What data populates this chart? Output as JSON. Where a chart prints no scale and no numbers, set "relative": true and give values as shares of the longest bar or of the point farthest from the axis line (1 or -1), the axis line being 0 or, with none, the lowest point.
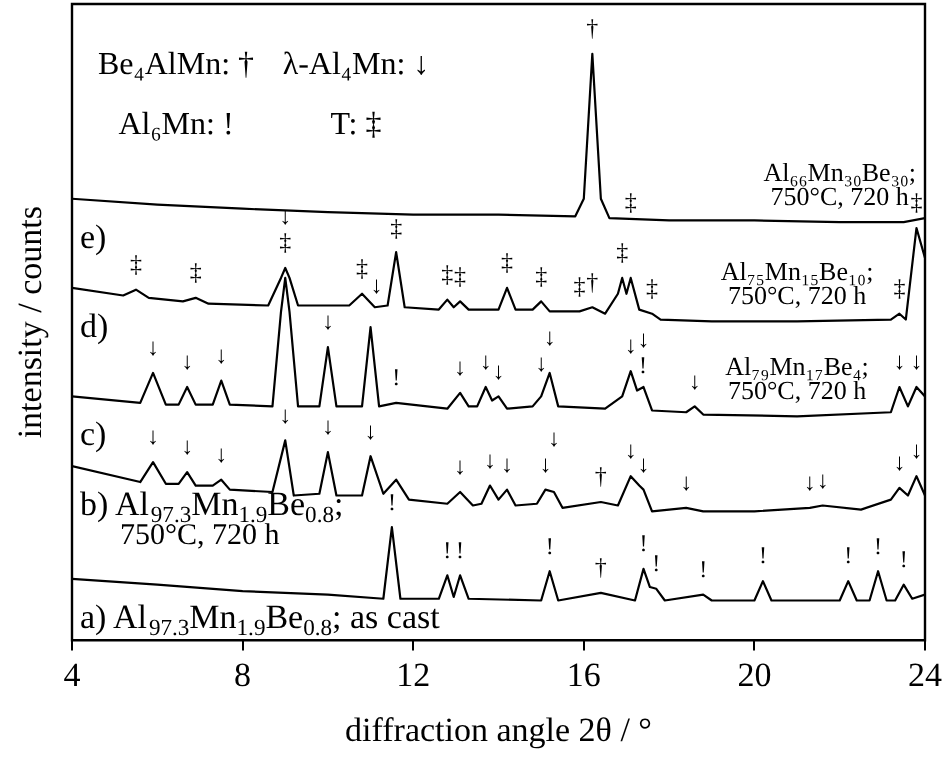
{
  "chart_data": {
    "type": "line",
    "xlabel": "diffraction angle 2θ / °",
    "ylabel": "intensity / counts",
    "xlim": [
      4,
      24
    ],
    "xticks": [
      4,
      8,
      12,
      16,
      20,
      24
    ],
    "relative": true,
    "tick_labels": "x",
    "series": [
      {
        "name": "e)",
        "color": "#000000",
        "x": [
          4,
          6,
          8,
          10,
          12,
          14,
          15.8,
          16.0,
          16.2,
          16.4,
          16.6,
          18,
          20,
          22,
          23.5,
          24
        ],
        "values": [
          0.753,
          0.743,
          0.736,
          0.73,
          0.726,
          0.726,
          0.723,
          0.753,
          1,
          0.753,
          0.72,
          0.716,
          0.716,
          0.713,
          0.713,
          0.72
        ]
      },
      {
        "name": "d)",
        "color": "#000000",
        "x": [
          4,
          5.2,
          5.5,
          5.8,
          6.6,
          6.9,
          7.2,
          8.6,
          8.9,
          9.0,
          9.1,
          9.3,
          10.5,
          10.8,
          11.1,
          11.4,
          11.6,
          11.8,
          12.6,
          12.8,
          12.95,
          13.1,
          13.3,
          14.0,
          14.2,
          14.4,
          14.8,
          15.0,
          15.2,
          15.9,
          16.2,
          16.5,
          16.8,
          16.9,
          17.0,
          17.1,
          17.3,
          17.6,
          17.8,
          19,
          21,
          23.2,
          23.4,
          23.55,
          23.8,
          24
        ],
        "values": [
          0.601,
          0.588,
          0.598,
          0.584,
          0.578,
          0.584,
          0.574,
          0.571,
          0.618,
          0.635,
          0.618,
          0.571,
          0.571,
          0.591,
          0.568,
          0.571,
          0.662,
          0.568,
          0.564,
          0.581,
          0.568,
          0.578,
          0.564,
          0.564,
          0.601,
          0.564,
          0.564,
          0.578,
          0.561,
          0.561,
          0.568,
          0.557,
          0.591,
          0.618,
          0.591,
          0.618,
          0.564,
          0.557,
          0.547,
          0.544,
          0.544,
          0.547,
          0.557,
          0.547,
          0.703,
          0.652
        ]
      },
      {
        "name": "c)",
        "color": "#000000",
        "x": [
          4,
          5.6,
          5.9,
          6.2,
          6.5,
          6.7,
          6.9,
          7.3,
          7.5,
          7.7,
          8.7,
          8.9,
          9.0,
          9.1,
          9.3,
          9.8,
          10.0,
          10.2,
          10.8,
          11.0,
          11.2,
          11.6,
          12.8,
          13.1,
          13.3,
          13.5,
          13.7,
          13.85,
          14.0,
          14.2,
          14.8,
          15.0,
          15.2,
          15.4,
          16.5,
          16.9,
          17.1,
          17.25,
          17.4,
          17.6,
          18.4,
          18.6,
          18.8,
          21,
          23.2,
          23.4,
          23.6,
          23.8,
          24
        ],
        "values": [
          0.416,
          0.405,
          0.456,
          0.402,
          0.402,
          0.432,
          0.402,
          0.402,
          0.443,
          0.402,
          0.399,
          0.56,
          0.618,
          0.56,
          0.399,
          0.399,
          0.5,
          0.399,
          0.399,
          0.534,
          0.399,
          0.405,
          0.395,
          0.422,
          0.399,
          0.399,
          0.432,
          0.409,
          0.416,
          0.395,
          0.399,
          0.416,
          0.456,
          0.399,
          0.395,
          0.416,
          0.459,
          0.426,
          0.432,
          0.392,
          0.389,
          0.399,
          0.385,
          0.382,
          0.389,
          0.432,
          0.399,
          0.432,
          0.416
        ]
      },
      {
        "name": "b) Al$_{97.3}$Mn$_{1.9}$Be$_{0.8}$;\n750°C, 720 h",
        "color": "#000000",
        "x": [
          4,
          5.6,
          5.9,
          6.2,
          6.5,
          6.7,
          6.9,
          7.3,
          7.5,
          7.7,
          8.7,
          9.0,
          9.2,
          9.8,
          10.0,
          10.2,
          10.8,
          11.0,
          11.3,
          11.6,
          11.9,
          12.8,
          13.1,
          13.4,
          13.6,
          13.8,
          14.0,
          14.2,
          14.4,
          14.9,
          15.1,
          15.3,
          15.5,
          16.4,
          16.8,
          17.1,
          17.3,
          17.4,
          17.6,
          18.4,
          18.8,
          20,
          21.3,
          21.6,
          22.5,
          23.2,
          23.4,
          23.6,
          23.8,
          24
        ],
        "values": [
          0.297,
          0.27,
          0.304,
          0.267,
          0.267,
          0.287,
          0.264,
          0.264,
          0.274,
          0.257,
          0.253,
          0.341,
          0.247,
          0.25,
          0.321,
          0.247,
          0.247,
          0.314,
          0.25,
          0.274,
          0.24,
          0.233,
          0.253,
          0.23,
          0.233,
          0.264,
          0.24,
          0.257,
          0.23,
          0.233,
          0.257,
          0.253,
          0.226,
          0.236,
          0.23,
          0.28,
          0.264,
          0.257,
          0.22,
          0.226,
          0.22,
          0.22,
          0.226,
          0.23,
          0.223,
          0.24,
          0.26,
          0.247,
          0.28,
          0.247
        ]
      },
      {
        "name": "a) Al$_{97.3}$Mn$_{1.9}$Be$_{0.8}$; as cast",
        "color": "#000000",
        "x": [
          4,
          6,
          8,
          10,
          11.3,
          11.5,
          11.7,
          12.6,
          12.8,
          12.95,
          13.1,
          13.3,
          15.0,
          15.2,
          15.4,
          16.4,
          17.2,
          17.4,
          17.55,
          17.7,
          17.9,
          18.8,
          19.0,
          20.0,
          20.2,
          20.4,
          22.0,
          22.2,
          22.4,
          22.7,
          22.9,
          23.1,
          23.3,
          23.5,
          23.7,
          24
        ],
        "values": [
          0.105,
          0.095,
          0.084,
          0.078,
          0.071,
          0.193,
          0.071,
          0.071,
          0.111,
          0.074,
          0.111,
          0.071,
          0.068,
          0.118,
          0.068,
          0.081,
          0.068,
          0.122,
          0.091,
          0.088,
          0.068,
          0.078,
          0.068,
          0.068,
          0.101,
          0.068,
          0.068,
          0.101,
          0.068,
          0.068,
          0.118,
          0.068,
          0.068,
          0.095,
          0.071,
          0.078
        ]
      }
    ],
    "annotations": [
      "Be₄AlMn: †",
      "λ-Al₄Mn: ↓",
      "Al₆Mn: !",
      "T: ‡",
      {
        "text": "Al₆₆Mn₃₀Be₃₀;\n750°C, 720 h",
        "x": 22,
        "y": 0.713
      },
      {
        "text": "Al₇₅Mn₁₅Be₁₀;\n750°C, 720 h",
        "x": 21,
        "y": 0.544
      },
      {
        "text": "Al₇₉Mn₁₇Be₄;\n750°C, 720 h",
        "x": 21,
        "y": 0.382
      },
      {
        "text": "†",
        "x": 16.2,
        "y": 1
      },
      {
        "text": "‡",
        "x": 5.5,
        "y": 0.598
      },
      {
        "text": "‡",
        "x": 6.9,
        "y": 0.584
      },
      {
        "text": "‡",
        "x": 9.0,
        "y": 0.635
      },
      {
        "text": "‡",
        "x": 10.8,
        "y": 0.591
      },
      {
        "text": "‡",
        "x": 11.6,
        "y": 0.662
      },
      {
        "text": "‡",
        "x": 12.8,
        "y": 0.581
      },
      {
        "text": "‡",
        "x": 13.1,
        "y": 0.578
      },
      {
        "text": "‡",
        "x": 14.2,
        "y": 0.601
      },
      {
        "text": "‡",
        "x": 15.0,
        "y": 0.578
      },
      {
        "text": "‡",
        "x": 15.9,
        "y": 0.561
      },
      {
        "text": "†",
        "x": 16.2,
        "y": 0.568
      },
      {
        "text": "‡",
        "x": 16.9,
        "y": 0.618
      },
      {
        "text": "‡",
        "x": 17.1,
        "y": 0.618
      },
      {
        "text": "‡",
        "x": 17.6,
        "y": 0.557
      },
      {
        "text": "‡",
        "x": 23.4,
        "y": 0.557
      },
      {
        "text": "‡",
        "x": 23.8,
        "y": 0.703
      },
      {
        "text": "↓",
        "x": 5.9,
        "y": 0.456
      },
      {
        "text": "↓",
        "x": 6.7,
        "y": 0.432
      },
      {
        "text": "↓",
        "x": 7.5,
        "y": 0.443
      },
      {
        "text": "↓",
        "x": 9.0,
        "y": 0.618
      },
      {
        "text": "↓",
        "x": 10.0,
        "y": 0.5
      },
      {
        "text": "↓",
        "x": 11.0,
        "y": 0.534
      },
      {
        "text": "!",
        "x": 11.6,
        "y": 0.405
      },
      {
        "text": "↓",
        "x": 13.1,
        "y": 0.422
      },
      {
        "text": "↓",
        "x": 13.7,
        "y": 0.432
      },
      {
        "text": "↓",
        "x": 14.0,
        "y": 0.416
      },
      {
        "text": "↓",
        "x": 15.0,
        "y": 0.416
      },
      {
        "text": "↓",
        "x": 15.2,
        "y": 0.456
      },
      {
        "text": "↓",
        "x": 17.1,
        "y": 0.459
      },
      {
        "text": "!",
        "x": 17.25,
        "y": 0.426
      },
      {
        "text": "↓",
        "x": 17.4,
        "y": 0.432
      },
      {
        "text": "↓",
        "x": 18.6,
        "y": 0.399
      },
      {
        "text": "↓",
        "x": 23.4,
        "y": 0.432
      },
      {
        "text": "↓",
        "x": 23.8,
        "y": 0.432
      },
      {
        "text": "↓",
        "x": 5.9,
        "y": 0.304
      },
      {
        "text": "↓",
        "x": 6.7,
        "y": 0.287
      },
      {
        "text": "↓",
        "x": 7.5,
        "y": 0.274
      },
      {
        "text": "↓",
        "x": 9.0,
        "y": 0.341
      },
      {
        "text": "↓",
        "x": 10.0,
        "y": 0.321
      },
      {
        "text": "↓",
        "x": 11.0,
        "y": 0.314
      },
      {
        "text": "↓",
        "x": 13.1,
        "y": 0.253
      },
      {
        "text": "↓",
        "x": 13.8,
        "y": 0.264
      },
      {
        "text": "↓",
        "x": 14.2,
        "y": 0.257
      },
      {
        "text": "↓",
        "x": 15.1,
        "y": 0.257
      },
      {
        "text": "↓",
        "x": 15.3,
        "y": 0.253
      },
      {
        "text": "†",
        "x": 16.4,
        "y": 0.236
      },
      {
        "text": "↓",
        "x": 17.1,
        "y": 0.28
      },
      {
        "text": "↓",
        "x": 17.4,
        "y": 0.257
      },
      {
        "text": "↓",
        "x": 18.4,
        "y": 0.226
      },
      {
        "text": "↓",
        "x": 21.3,
        "y": 0.226
      },
      {
        "text": "↓",
        "x": 21.6,
        "y": 0.23
      },
      {
        "text": "↓",
        "x": 23.4,
        "y": 0.26
      },
      {
        "text": "↓",
        "x": 23.8,
        "y": 0.28
      },
      {
        "text": "!",
        "x": 11.5,
        "y": 0.193
      },
      {
        "text": "!",
        "x": 12.8,
        "y": 0.111
      },
      {
        "text": "!",
        "x": 13.1,
        "y": 0.111
      },
      {
        "text": "!",
        "x": 15.2,
        "y": 0.118
      },
      {
        "text": "†",
        "x": 16.4,
        "y": 0.081
      },
      {
        "text": "!",
        "x": 17.4,
        "y": 0.122
      },
      {
        "text": "!",
        "x": 17.7,
        "y": 0.088
      },
      {
        "text": "!",
        "x": 18.8,
        "y": 0.078
      },
      {
        "text": "!",
        "x": 20.2,
        "y": 0.101
      },
      {
        "text": "!",
        "x": 22.2,
        "y": 0.101
      },
      {
        "text": "!",
        "x": 22.9,
        "y": 0.118
      },
      {
        "text": "!",
        "x": 23.5,
        "y": 0.095
      }
    ]
  }
}
